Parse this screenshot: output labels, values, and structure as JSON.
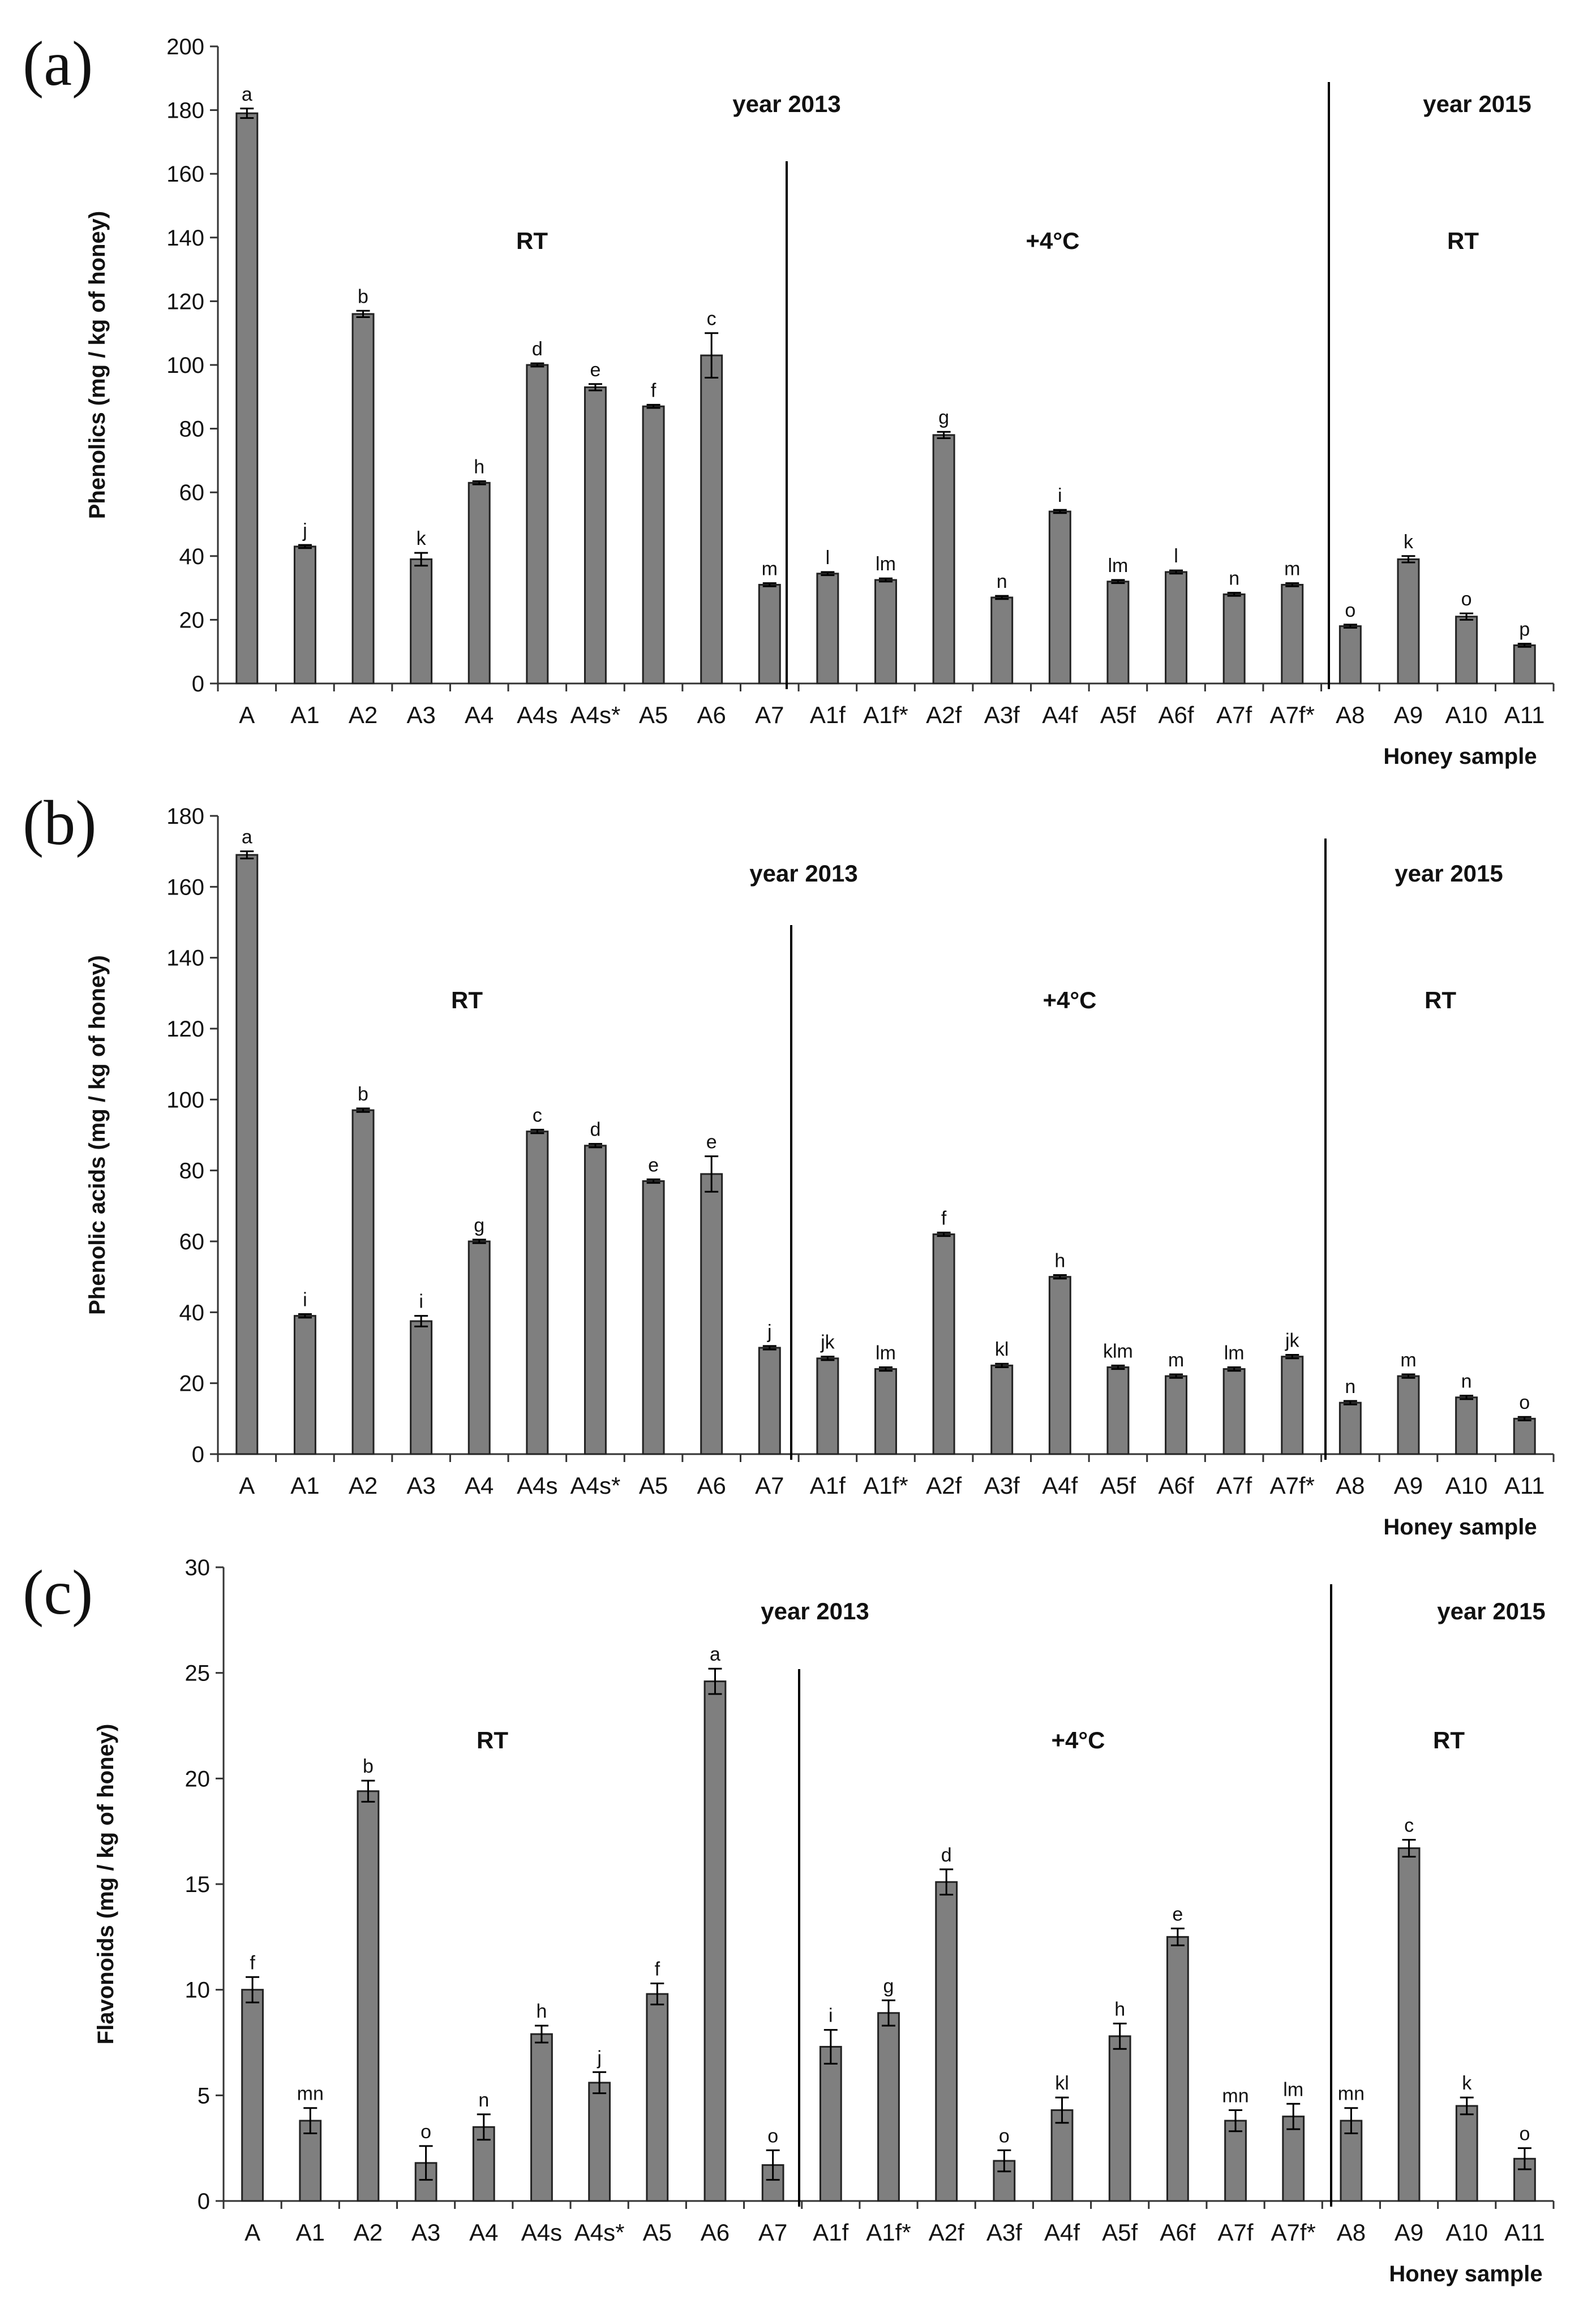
{
  "chart_data": [
    {
      "type": "bar",
      "panel": "(a)",
      "ylabel": "Phenolics (mg / kg of honey)",
      "xlabel": "Honey sample",
      "ylim": [
        0,
        200
      ],
      "yticks": [
        0,
        20,
        40,
        60,
        80,
        100,
        120,
        140,
        160,
        180,
        200
      ],
      "categories": [
        "A",
        "A1",
        "A2",
        "A3",
        "A4",
        "A4s",
        "A4s*",
        "A5",
        "A6",
        "A7",
        "A1f",
        "A1f*",
        "A2f",
        "A3f",
        "A4f",
        "A5f",
        "A6f",
        "A7f",
        "A7f*",
        "A8",
        "A9",
        "A10",
        "A11"
      ],
      "values": [
        179,
        43,
        116,
        39,
        63,
        100,
        93,
        87,
        103,
        31,
        34.5,
        32.5,
        78,
        27,
        54,
        32,
        35,
        28,
        31,
        18,
        39,
        21,
        12
      ],
      "errors": [
        1.5,
        0.5,
        1,
        2,
        0.5,
        0.5,
        1,
        0.5,
        7,
        0.5,
        0.5,
        0.5,
        1,
        0.5,
        0.5,
        0.5,
        0.5,
        0.5,
        0.5,
        0.5,
        1,
        1,
        0.5
      ],
      "sig_letters": [
        "a",
        "j",
        "b",
        "k",
        "h",
        "d",
        "e",
        "f",
        "c",
        "m",
        "l",
        "lm",
        "g",
        "n",
        "i",
        "lm",
        "l",
        "n",
        "m",
        "o",
        "k",
        "o",
        "p"
      ],
      "regions": {
        "year_left": "year 2013",
        "year_right": "year 2015",
        "rt_left": "RT",
        "cold": "+4°C",
        "rt_right": "RT"
      }
    },
    {
      "type": "bar",
      "panel": "(b)",
      "ylabel": "Phenolic acids (mg / kg of honey)",
      "xlabel": "Honey sample",
      "ylim": [
        0,
        180
      ],
      "yticks": [
        0,
        20,
        40,
        60,
        80,
        100,
        120,
        140,
        160,
        180
      ],
      "categories": [
        "A",
        "A1",
        "A2",
        "A3",
        "A4",
        "A4s",
        "A4s*",
        "A5",
        "A6",
        "A7",
        "A1f",
        "A1f*",
        "A2f",
        "A3f",
        "A4f",
        "A5f",
        "A6f",
        "A7f",
        "A7f*",
        "A8",
        "A9",
        "A10",
        "A11"
      ],
      "values": [
        169,
        39,
        97,
        37.5,
        60,
        91,
        87,
        77,
        79,
        30,
        27,
        24,
        62,
        25,
        50,
        24.5,
        22,
        24,
        27.5,
        14.5,
        22,
        16,
        10
      ],
      "errors": [
        1,
        0.5,
        0.5,
        1.5,
        0.5,
        0.5,
        0.5,
        0.5,
        5,
        0.5,
        0.5,
        0.5,
        0.5,
        0.5,
        0.5,
        0.5,
        0.5,
        0.5,
        0.5,
        0.5,
        0.5,
        0.5,
        0.5
      ],
      "sig_letters": [
        "a",
        "i",
        "b",
        "i",
        "g",
        "c",
        "d",
        "e",
        "e",
        "j",
        "jk",
        "lm",
        "f",
        "kl",
        "h",
        "klm",
        "m",
        "lm",
        "jk",
        "n",
        "m",
        "n",
        "o"
      ],
      "regions": {
        "year_left": "year 2013",
        "year_right": "year 2015",
        "rt_left": "RT",
        "cold": "+4°C",
        "rt_right": "RT"
      }
    },
    {
      "type": "bar",
      "panel": "(c)",
      "ylabel": "Flavonoids (mg / kg of honey)",
      "xlabel": "Honey sample",
      "ylim": [
        0,
        30
      ],
      "yticks": [
        0,
        5,
        10,
        15,
        20,
        25,
        30
      ],
      "categories": [
        "A",
        "A1",
        "A2",
        "A3",
        "A4",
        "A4s",
        "A4s*",
        "A5",
        "A6",
        "A7",
        "A1f",
        "A1f*",
        "A2f",
        "A3f",
        "A4f",
        "A5f",
        "A6f",
        "A7f",
        "A7f*",
        "A8",
        "A9",
        "A10",
        "A11"
      ],
      "values": [
        10,
        3.8,
        19.4,
        1.8,
        3.5,
        7.9,
        5.6,
        9.8,
        24.6,
        1.7,
        7.3,
        8.9,
        15.1,
        1.9,
        4.3,
        7.8,
        12.5,
        3.8,
        4,
        3.8,
        16.7,
        4.5,
        2
      ],
      "errors": [
        0.6,
        0.6,
        0.5,
        0.8,
        0.6,
        0.4,
        0.5,
        0.5,
        0.6,
        0.7,
        0.8,
        0.6,
        0.6,
        0.5,
        0.6,
        0.6,
        0.4,
        0.5,
        0.6,
        0.6,
        0.4,
        0.4,
        0.5
      ],
      "sig_letters": [
        "f",
        "mn",
        "b",
        "o",
        "n",
        "h",
        "j",
        "f",
        "a",
        "o",
        "i",
        "g",
        "d",
        "o",
        "kl",
        "h",
        "e",
        "mn",
        "lm",
        "mn",
        "c",
        "k",
        "o"
      ],
      "regions": {
        "year_left": "year 2013",
        "year_right": "year 2015",
        "rt_left": "RT",
        "cold": "+4°C",
        "rt_right": "RT"
      }
    }
  ],
  "colors": {
    "bar": "#7f7f7f",
    "bar_stroke": "#222222",
    "axis": "#333333"
  }
}
